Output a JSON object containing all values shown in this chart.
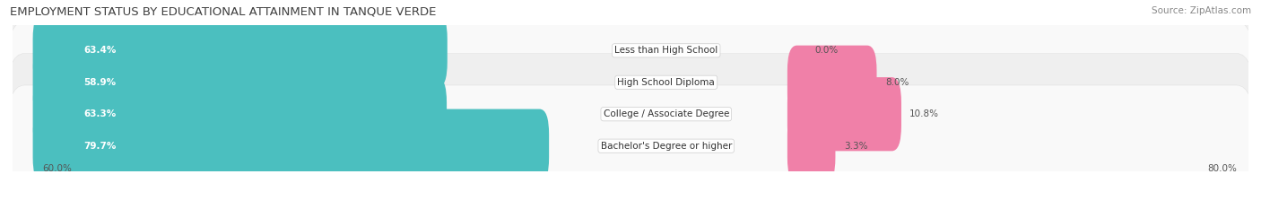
{
  "title": "EMPLOYMENT STATUS BY EDUCATIONAL ATTAINMENT IN TANQUE VERDE",
  "source": "Source: ZipAtlas.com",
  "categories": [
    "Less than High School",
    "High School Diploma",
    "College / Associate Degree",
    "Bachelor's Degree or higher"
  ],
  "labor_force": [
    63.4,
    58.9,
    63.3,
    79.7
  ],
  "unemployed": [
    0.0,
    8.0,
    10.8,
    3.3
  ],
  "labor_force_color": "#4BBFBF",
  "unemployed_color": "#F080A8",
  "row_bg_even": "#EFEFEF",
  "row_bg_odd": "#F9F9F9",
  "x_left_label": "60.0%",
  "x_right_label": "80.0%",
  "title_fontsize": 9.5,
  "label_fontsize": 7.5,
  "tick_fontsize": 7.5,
  "bar_value_fontsize": 7.5,
  "source_fontsize": 7.5
}
